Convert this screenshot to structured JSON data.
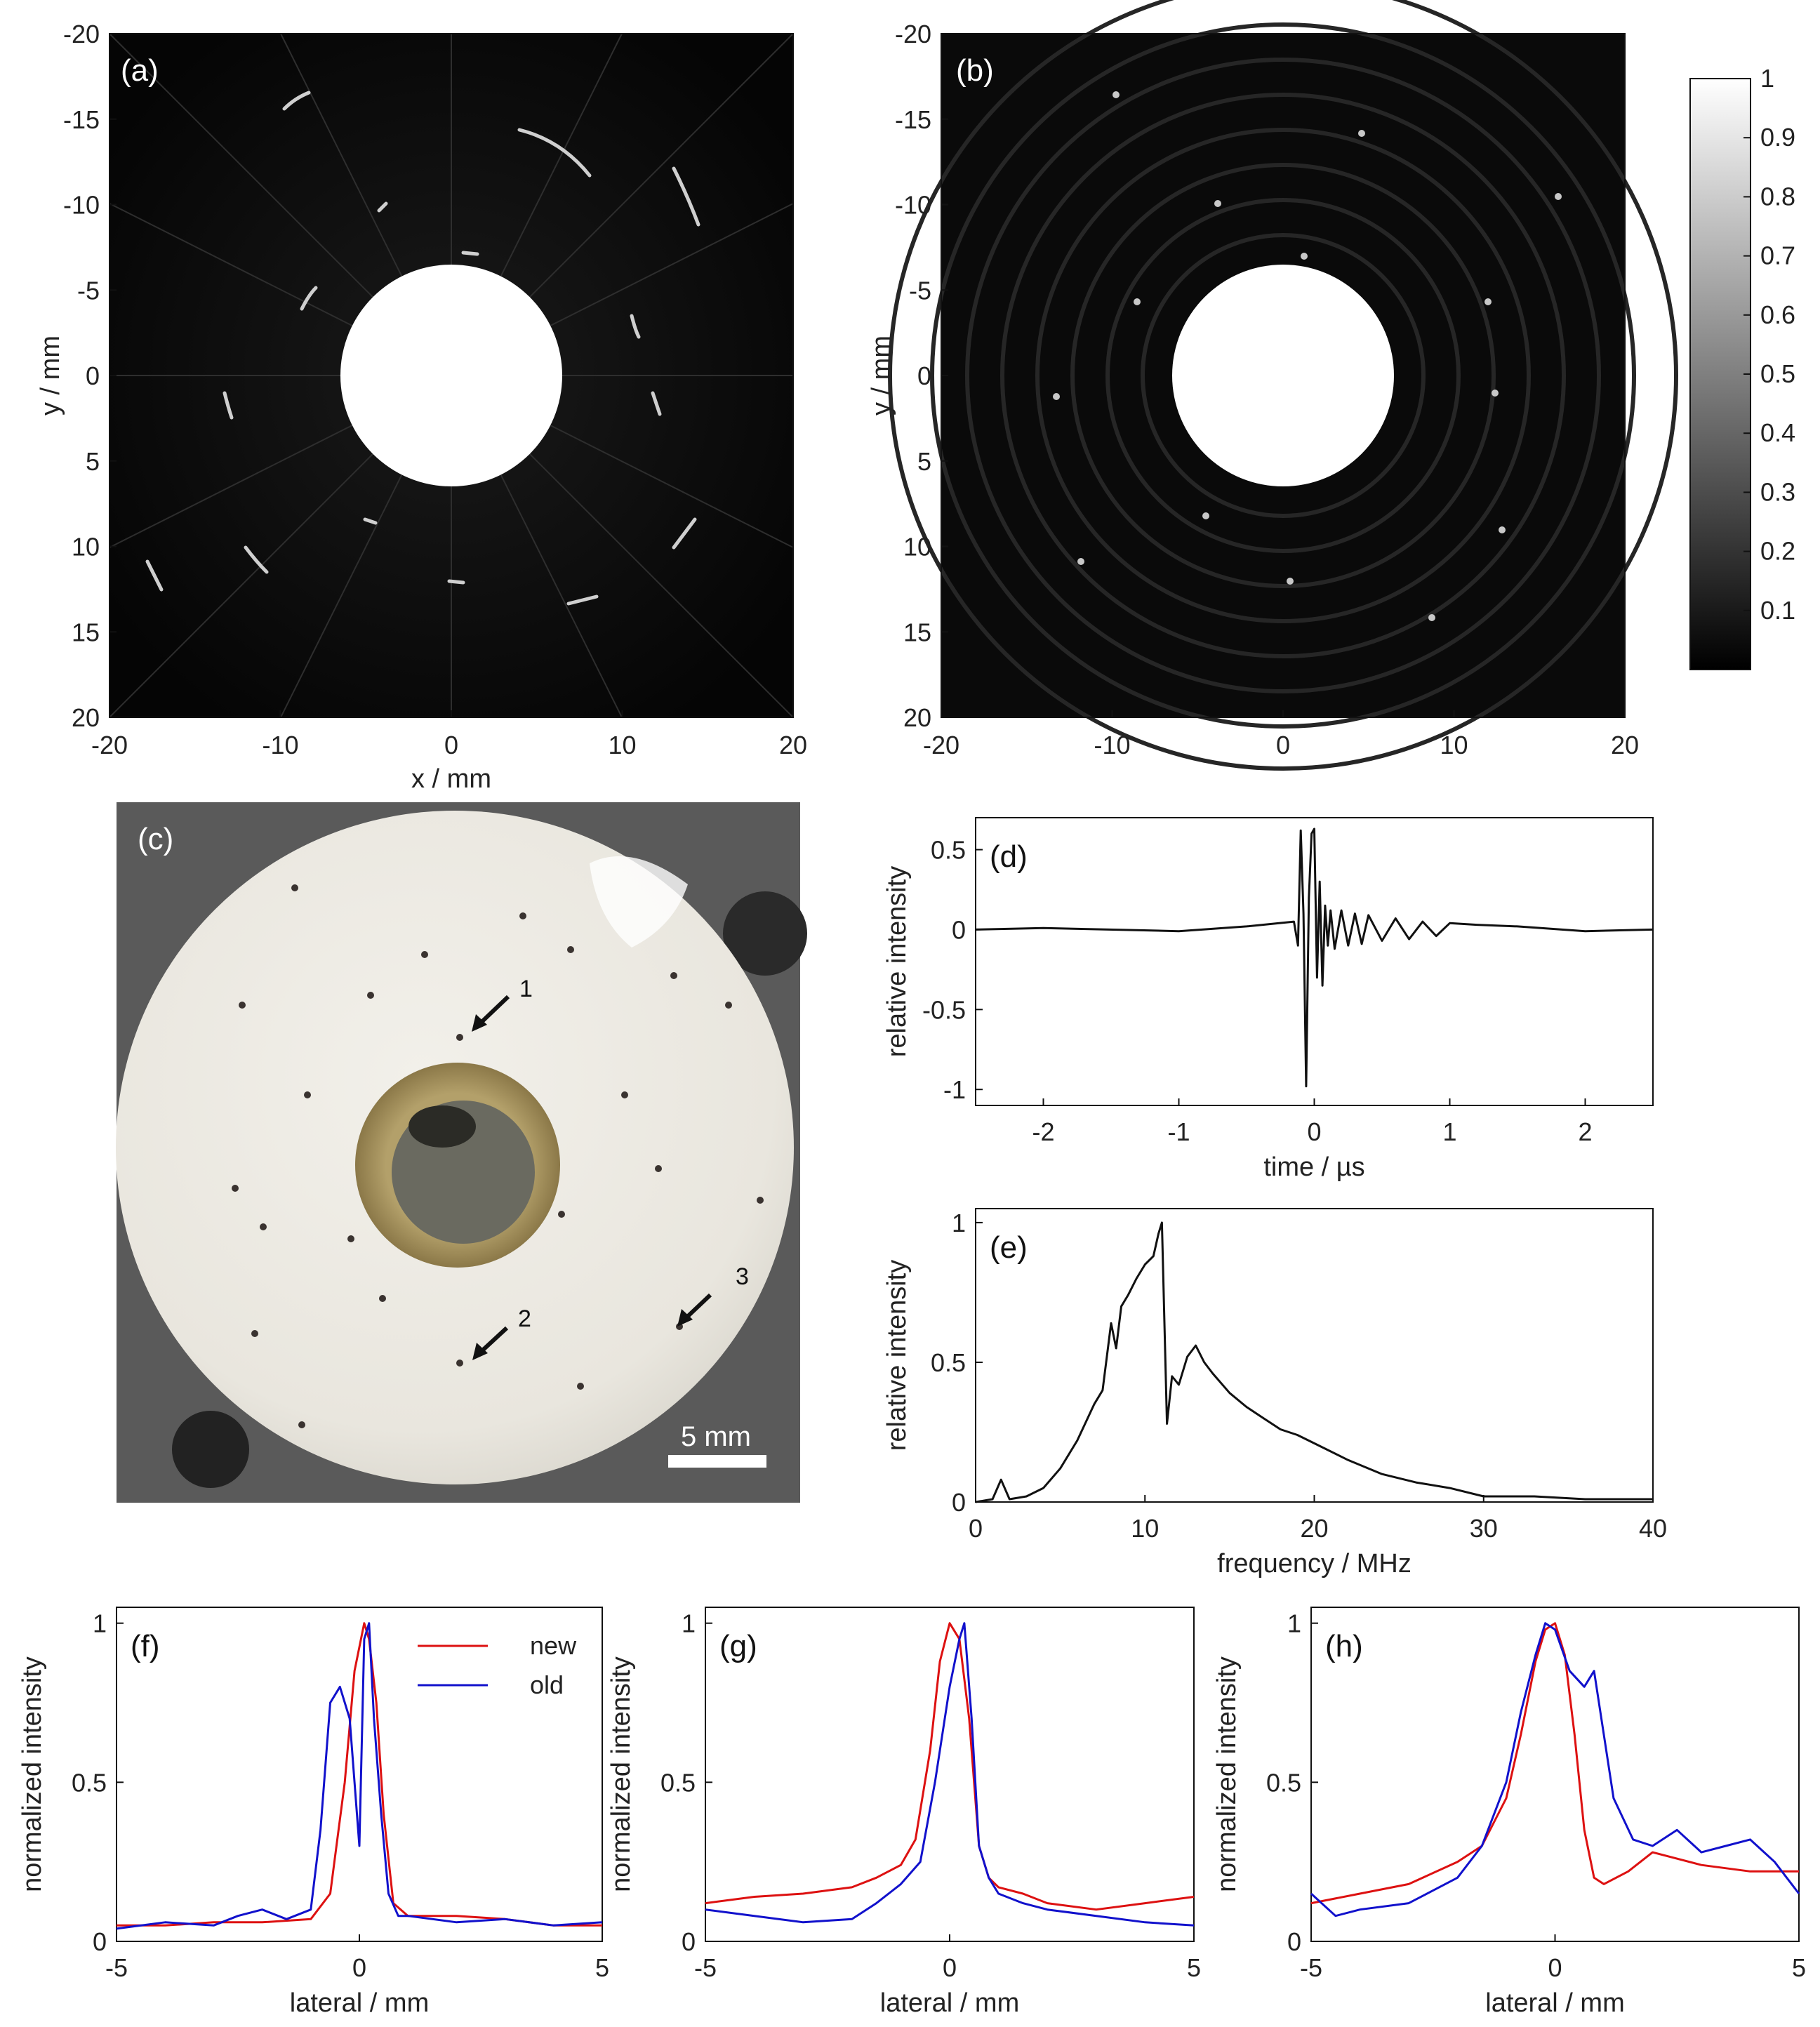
{
  "colors": {
    "new": "#dd1111",
    "old": "#1111cc",
    "trace": "#111111"
  },
  "chart_data": [
    {
      "id": "a",
      "type": "heatmap",
      "panel_label": "(a)",
      "xlabel": "x / mm",
      "ylabel": "y / mm",
      "xlim": [
        -20,
        20
      ],
      "ylim": [
        20,
        -20
      ],
      "xticks": [
        "-20",
        "-10",
        "0",
        "10",
        "20"
      ],
      "yticks": [
        "-20",
        "-15",
        "-10",
        "-5",
        "0",
        "5",
        "10",
        "15",
        "20"
      ],
      "description": "grayscale reconstruction with white central disc of radius about 6.5 mm, radial streak artifacts and bright point targets"
    },
    {
      "id": "b",
      "type": "heatmap",
      "panel_label": "(b)",
      "xlabel": "x / mm",
      "ylabel": "y / mm",
      "xlim": [
        -20,
        20
      ],
      "ylim": [
        20,
        -20
      ],
      "xticks": [
        "-20",
        "-10",
        "0",
        "10",
        "20"
      ],
      "yticks": [
        "-20",
        "-15",
        "-10",
        "-5",
        "0",
        "5",
        "10",
        "15",
        "20"
      ],
      "colorbar": {
        "range": [
          0,
          1
        ],
        "ticks": [
          "0.1",
          "0.2",
          "0.3",
          "0.4",
          "0.5",
          "0.6",
          "0.7",
          "0.8",
          "0.9",
          "1"
        ]
      }
    },
    {
      "id": "c",
      "type": "photo",
      "panel_label": "(c)",
      "arrows": [
        "1",
        "2",
        "3"
      ],
      "scale_bar": "5 mm"
    },
    {
      "id": "d",
      "type": "line",
      "panel_label": "(d)",
      "xlabel": "time / µs",
      "ylabel": "relative intensity",
      "xlim": [
        -2.5,
        2.5
      ],
      "ylim": [
        -1.1,
        0.7
      ],
      "xticks": [
        "-2",
        "-1",
        "0",
        "1",
        "2"
      ],
      "yticks": [
        "-1",
        "-0.5",
        "0",
        "0.5"
      ],
      "x": [
        -2.5,
        -2.0,
        -1.0,
        -0.5,
        -0.15,
        -0.12,
        -0.1,
        -0.08,
        -0.06,
        -0.04,
        -0.02,
        0.0,
        0.02,
        0.04,
        0.06,
        0.08,
        0.1,
        0.12,
        0.15,
        0.2,
        0.25,
        0.3,
        0.35,
        0.4,
        0.5,
        0.6,
        0.7,
        0.8,
        0.9,
        1.0,
        1.2,
        1.5,
        2.0,
        2.5
      ],
      "y": [
        0.0,
        0.01,
        -0.01,
        0.02,
        0.05,
        -0.1,
        0.62,
        0.1,
        -0.98,
        0.2,
        0.6,
        0.63,
        -0.3,
        0.3,
        -0.35,
        0.15,
        -0.1,
        0.12,
        -0.12,
        0.12,
        -0.1,
        0.1,
        -0.09,
        0.09,
        -0.07,
        0.07,
        -0.06,
        0.05,
        -0.04,
        0.04,
        0.03,
        0.02,
        -0.01,
        0.0
      ]
    },
    {
      "id": "e",
      "type": "line",
      "panel_label": "(e)",
      "xlabel": "frequency / MHz",
      "ylabel": "relative intensity",
      "xlim": [
        0,
        40
      ],
      "ylim": [
        0,
        1.05
      ],
      "xticks": [
        "0",
        "10",
        "20",
        "30",
        "40"
      ],
      "yticks": [
        "0",
        "0.5",
        "1"
      ],
      "x": [
        0,
        1,
        1.5,
        2,
        3,
        4,
        5,
        6,
        7,
        7.5,
        8,
        8.3,
        8.6,
        9,
        9.5,
        10,
        10.5,
        10.8,
        11,
        11.3,
        11.6,
        12,
        12.5,
        13,
        13.5,
        14,
        15,
        16,
        17,
        18,
        19,
        20,
        22,
        24,
        26,
        28,
        30,
        33,
        36,
        40
      ],
      "y": [
        0,
        0.01,
        0.08,
        0.01,
        0.02,
        0.05,
        0.12,
        0.22,
        0.35,
        0.4,
        0.64,
        0.55,
        0.7,
        0.74,
        0.8,
        0.85,
        0.88,
        0.96,
        1.0,
        0.28,
        0.45,
        0.42,
        0.52,
        0.56,
        0.5,
        0.46,
        0.39,
        0.34,
        0.3,
        0.26,
        0.24,
        0.21,
        0.15,
        0.1,
        0.07,
        0.05,
        0.02,
        0.02,
        0.01,
        0.01
      ]
    },
    {
      "id": "f",
      "type": "line",
      "panel_label": "(f)",
      "xlabel": "lateral / mm",
      "ylabel": "normalized intensity",
      "xlim": [
        -5,
        5
      ],
      "ylim": [
        0,
        1.05
      ],
      "xticks": [
        "-5",
        "0",
        "5"
      ],
      "yticks": [
        "0",
        "0.5",
        "1"
      ],
      "legend": {
        "position": "top-right",
        "entries": [
          "new",
          "old"
        ]
      },
      "series": [
        {
          "name": "new",
          "x": [
            -5,
            -4,
            -3,
            -2,
            -1,
            -0.6,
            -0.3,
            -0.1,
            0.1,
            0.2,
            0.35,
            0.5,
            0.7,
            1,
            2,
            3,
            4,
            5
          ],
          "y": [
            0.05,
            0.05,
            0.06,
            0.06,
            0.07,
            0.15,
            0.5,
            0.85,
            1.0,
            0.95,
            0.75,
            0.4,
            0.12,
            0.08,
            0.08,
            0.07,
            0.05,
            0.05
          ]
        },
        {
          "name": "old",
          "x": [
            -5,
            -4,
            -3,
            -2.5,
            -2,
            -1.5,
            -1,
            -0.8,
            -0.6,
            -0.4,
            -0.2,
            0.0,
            0.1,
            0.2,
            0.3,
            0.45,
            0.6,
            0.8,
            1,
            2,
            3,
            4,
            5
          ],
          "y": [
            0.04,
            0.06,
            0.05,
            0.08,
            0.1,
            0.07,
            0.1,
            0.35,
            0.75,
            0.8,
            0.7,
            0.3,
            0.95,
            1.0,
            0.7,
            0.4,
            0.15,
            0.08,
            0.08,
            0.06,
            0.07,
            0.05,
            0.06
          ]
        }
      ]
    },
    {
      "id": "g",
      "type": "line",
      "panel_label": "(g)",
      "xlabel": "lateral / mm",
      "ylabel": "normalized intensity",
      "xlim": [
        -5,
        5
      ],
      "ylim": [
        0,
        1.05
      ],
      "xticks": [
        "-5",
        "0",
        "5"
      ],
      "yticks": [
        "0",
        "0.5",
        "1"
      ],
      "series": [
        {
          "name": "new",
          "x": [
            -5,
            -4,
            -3,
            -2,
            -1.5,
            -1,
            -0.7,
            -0.4,
            -0.2,
            0.0,
            0.2,
            0.4,
            0.6,
            0.8,
            1,
            1.5,
            2,
            3,
            4,
            5
          ],
          "y": [
            0.12,
            0.14,
            0.15,
            0.17,
            0.2,
            0.24,
            0.32,
            0.6,
            0.88,
            1.0,
            0.95,
            0.7,
            0.3,
            0.2,
            0.17,
            0.15,
            0.12,
            0.1,
            0.12,
            0.14
          ]
        },
        {
          "name": "old",
          "x": [
            -5,
            -4,
            -3,
            -2,
            -1.5,
            -1,
            -0.6,
            -0.3,
            0.0,
            0.2,
            0.3,
            0.45,
            0.6,
            0.8,
            1,
            1.5,
            2,
            3,
            4,
            5
          ],
          "y": [
            0.1,
            0.08,
            0.06,
            0.07,
            0.12,
            0.18,
            0.25,
            0.5,
            0.8,
            0.95,
            1.0,
            0.7,
            0.3,
            0.2,
            0.15,
            0.12,
            0.1,
            0.08,
            0.06,
            0.05
          ]
        }
      ]
    },
    {
      "id": "h",
      "type": "line",
      "panel_label": "(h)",
      "xlabel": "lateral / mm",
      "ylabel": "normalized intensity",
      "xlim": [
        -5,
        5
      ],
      "ylim": [
        0,
        1.05
      ],
      "xticks": [
        "-5",
        "0",
        "5"
      ],
      "yticks": [
        "0",
        "0.5",
        "1"
      ],
      "series": [
        {
          "name": "new",
          "x": [
            -5,
            -4,
            -3,
            -2,
            -1.5,
            -1,
            -0.7,
            -0.4,
            -0.2,
            0.0,
            0.2,
            0.4,
            0.6,
            0.8,
            1,
            1.5,
            2,
            3,
            4,
            5
          ],
          "y": [
            0.12,
            0.15,
            0.18,
            0.25,
            0.3,
            0.45,
            0.65,
            0.88,
            0.98,
            1.0,
            0.9,
            0.65,
            0.35,
            0.2,
            0.18,
            0.22,
            0.28,
            0.24,
            0.22,
            0.22
          ]
        },
        {
          "name": "old",
          "x": [
            -5,
            -4.5,
            -4,
            -3,
            -2,
            -1.5,
            -1,
            -0.7,
            -0.4,
            -0.2,
            0.0,
            0.3,
            0.6,
            0.8,
            1,
            1.2,
            1.6,
            2,
            2.5,
            3,
            3.5,
            4,
            4.5,
            5
          ],
          "y": [
            0.15,
            0.08,
            0.1,
            0.12,
            0.2,
            0.3,
            0.5,
            0.72,
            0.9,
            1.0,
            0.98,
            0.85,
            0.8,
            0.85,
            0.65,
            0.45,
            0.32,
            0.3,
            0.35,
            0.28,
            0.3,
            0.32,
            0.25,
            0.15
          ]
        }
      ]
    }
  ]
}
